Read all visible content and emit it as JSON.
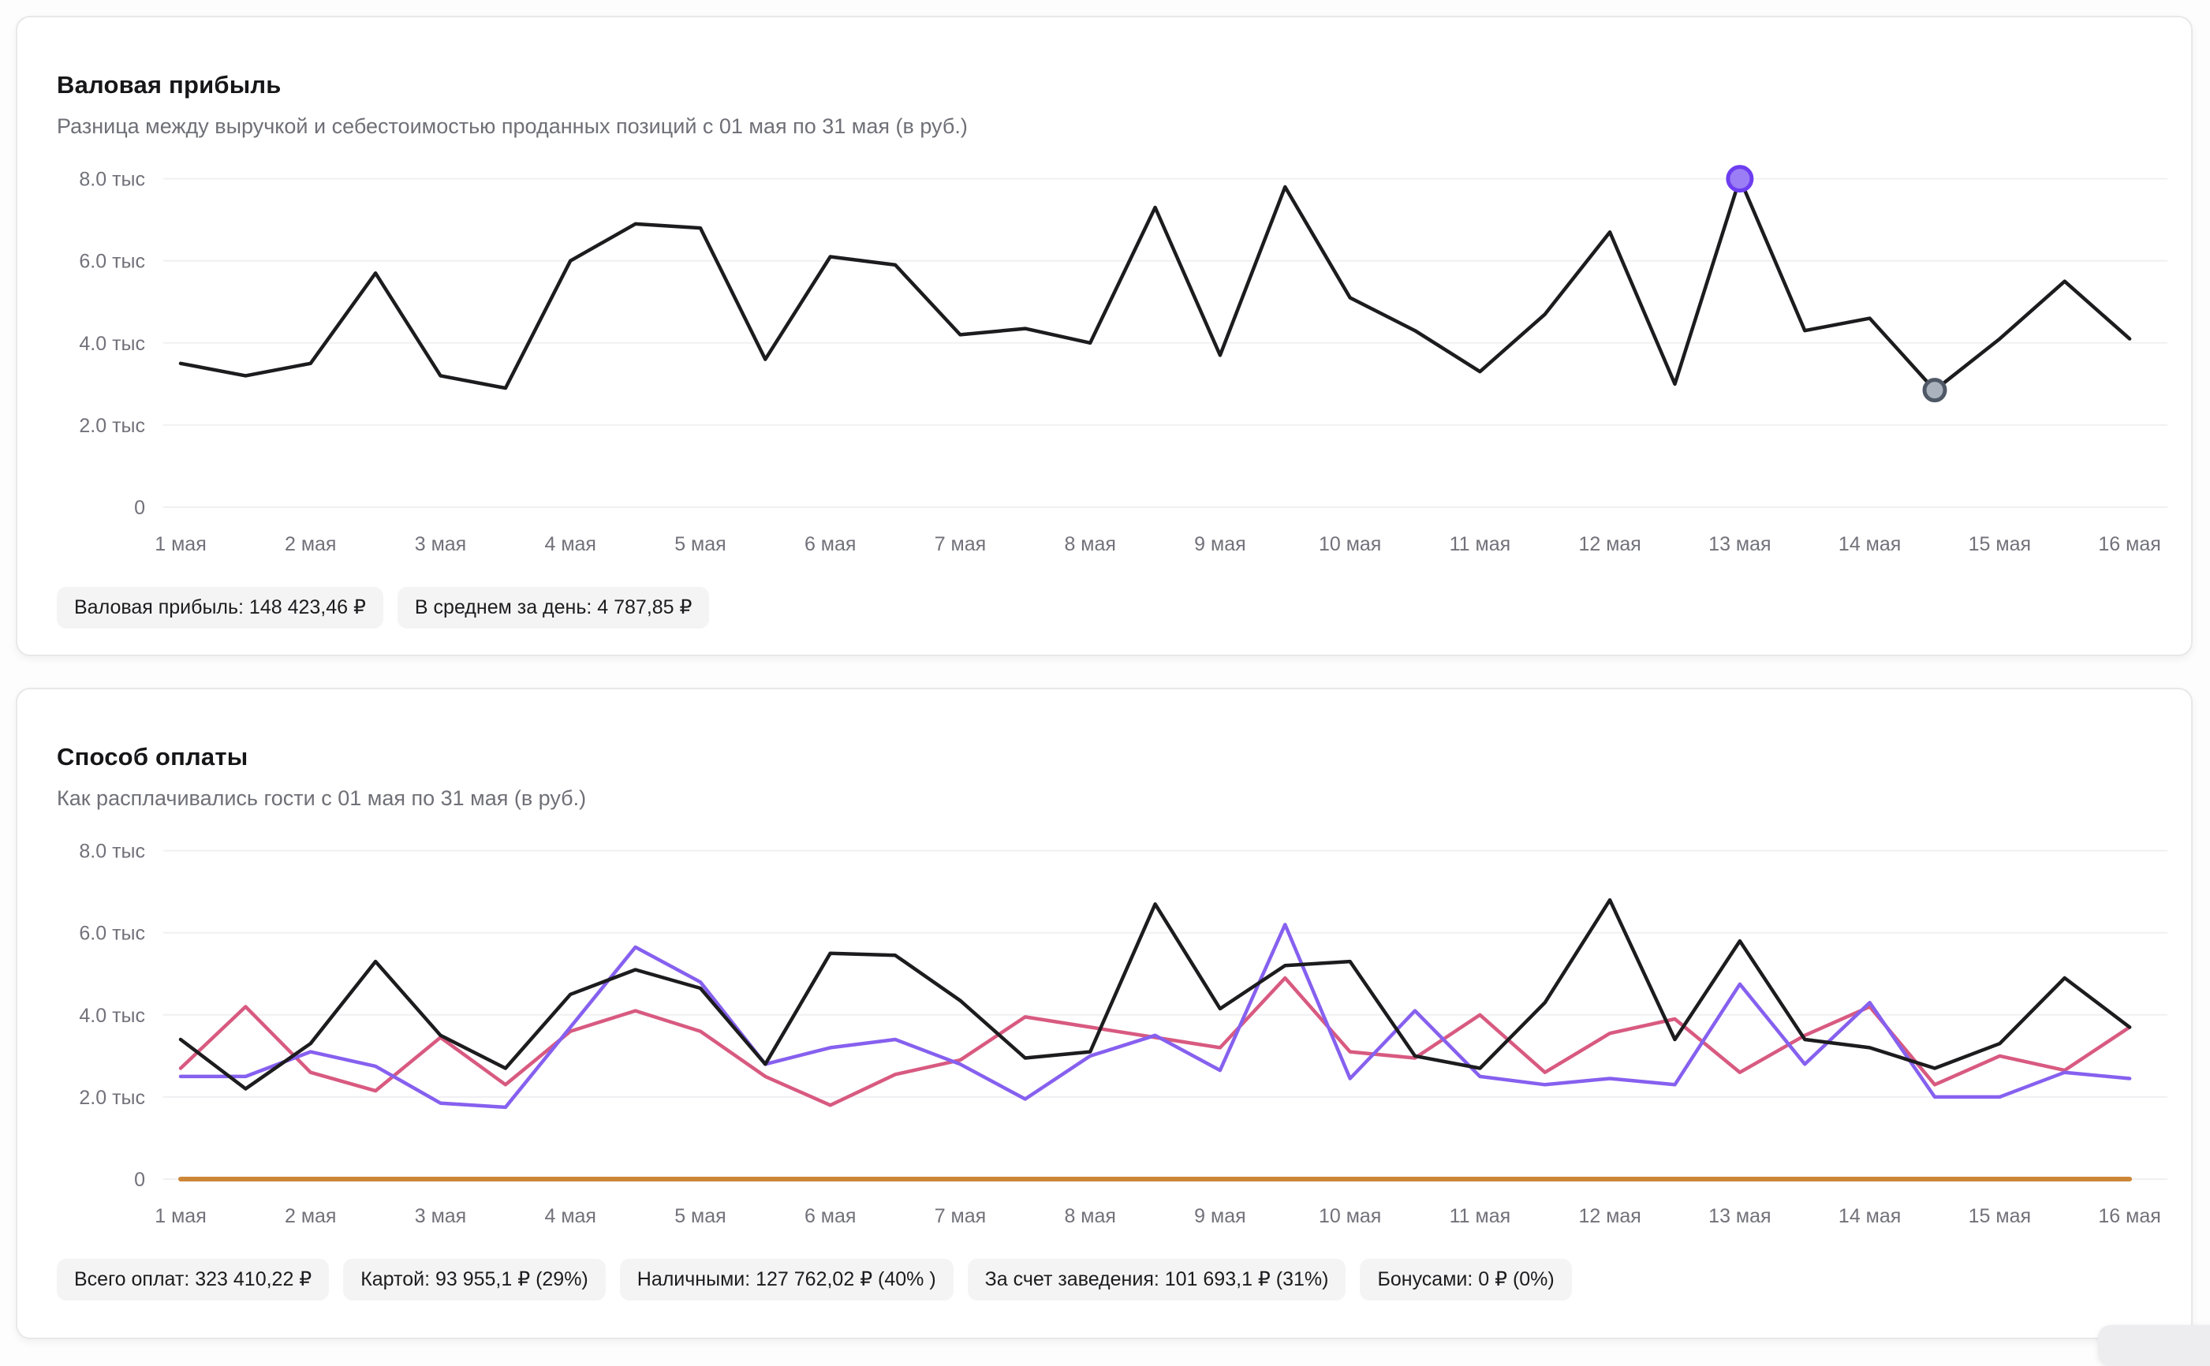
{
  "cards": [
    {
      "title": "Валовая прибыль",
      "subtitle": "Разница между выручкой и себестоимостью проданных позиций с 01 мая по 31 мая (в руб.)",
      "badges": [
        "Валовая прибыль: 148 423,46 ₽",
        "В среднем за день: 4 787,85 ₽"
      ]
    },
    {
      "title": "Способ оплаты",
      "subtitle": "Как расплачивались гости с 01 мая по 31 мая (в руб.)",
      "badges": [
        "Всего оплат: 323 410,22 ₽",
        "Картой: 93 955,1 ₽ (29%)",
        "Наличными: 127 762,02 ₽ (40% )",
        "За счет заведения: 101 693,1 ₽ (31%)",
        "Бонусами: 0 ₽ (0%)"
      ]
    }
  ],
  "chart_data": [
    {
      "type": "line",
      "title": "Валовая прибыль",
      "values_unit": "тыс ₽",
      "ylim": [
        0,
        8000
      ],
      "grid": true,
      "y_ticks": [
        "0",
        "2.0 тыс",
        "4.0 тыс",
        "6.0 тыс",
        "8.0 тыс"
      ],
      "x_labels": [
        "1 мая",
        "2 мая",
        "3 мая",
        "4 мая",
        "5 мая",
        "6 мая",
        "7 мая",
        "8 мая",
        "9 мая",
        "10 мая",
        "11 мая",
        "12 мая",
        "13 мая",
        "14 мая",
        "15 мая",
        "16 мая"
      ],
      "points_per_label": 2,
      "series": [
        {
          "name": "Валовая прибыль",
          "color": "#1c1c1e",
          "width": 4.5,
          "values": [
            3.5,
            3.2,
            3.5,
            5.7,
            3.2,
            2.9,
            6.0,
            6.9,
            6.8,
            3.6,
            6.1,
            5.9,
            4.2,
            4.35,
            4.0,
            7.3,
            3.7,
            7.8,
            5.1,
            4.3,
            3.3,
            4.7,
            6.7,
            3.0,
            8.0,
            4.3,
            4.6,
            2.85,
            4.1,
            5.5,
            4.1
          ]
        }
      ],
      "markers": [
        {
          "series": 0,
          "point_index": 24,
          "fill": "#9b7ef5",
          "stroke": "#6d3df0",
          "r": 15
        },
        {
          "series": 0,
          "point_index": 27,
          "fill": "#a9b2bd",
          "stroke": "#4f5866",
          "r": 13
        }
      ]
    },
    {
      "type": "line",
      "title": "Способ оплаты",
      "values_unit": "тыс ₽",
      "ylim": [
        0,
        8000
      ],
      "grid": true,
      "y_ticks": [
        "0",
        "2.0 тыс",
        "4.0 тыс",
        "6.0 тыс",
        "8.0 тыс"
      ],
      "x_labels": [
        "1 мая",
        "2 мая",
        "3 мая",
        "4 мая",
        "5 мая",
        "6 мая",
        "7 мая",
        "8 мая",
        "9 мая",
        "10 мая",
        "11 мая",
        "12 мая",
        "13 мая",
        "14 мая",
        "15 мая",
        "16 мая"
      ],
      "points_per_label": 2,
      "series": [
        {
          "name": "line-orange-zero",
          "color": "#cd8638",
          "width": 6,
          "values": [
            0,
            0,
            0,
            0,
            0,
            0,
            0,
            0,
            0,
            0,
            0,
            0,
            0,
            0,
            0,
            0,
            0,
            0,
            0,
            0,
            0,
            0,
            0,
            0,
            0,
            0,
            0,
            0,
            0,
            0,
            0
          ]
        },
        {
          "name": "line-pink",
          "color": "#d85a80",
          "width": 4.5,
          "values": [
            2.7,
            4.2,
            2.6,
            2.15,
            3.45,
            2.3,
            3.6,
            4.1,
            3.6,
            2.5,
            1.8,
            2.55,
            2.9,
            3.95,
            3.7,
            3.45,
            3.2,
            4.9,
            3.1,
            2.95,
            4.0,
            2.6,
            3.55,
            3.9,
            2.6,
            3.5,
            4.2,
            2.3,
            3.0,
            2.65,
            3.7
          ]
        },
        {
          "name": "line-purple",
          "color": "#8660ef",
          "width": 4.5,
          "values": [
            2.5,
            2.5,
            3.1,
            2.75,
            1.85,
            1.75,
            3.7,
            5.65,
            4.8,
            2.8,
            3.2,
            3.4,
            2.8,
            1.95,
            3.0,
            3.5,
            2.65,
            6.2,
            2.45,
            4.1,
            2.5,
            2.3,
            2.45,
            2.3,
            4.75,
            2.8,
            4.3,
            2.0,
            2.0,
            2.6,
            2.45
          ]
        },
        {
          "name": "line-black",
          "color": "#1c1c1e",
          "width": 4.5,
          "values": [
            3.4,
            2.2,
            3.3,
            5.3,
            3.5,
            2.7,
            4.5,
            5.1,
            4.65,
            2.8,
            5.5,
            5.45,
            4.35,
            2.95,
            3.1,
            6.7,
            4.15,
            5.2,
            5.3,
            3.0,
            2.7,
            4.3,
            6.8,
            3.4,
            5.8,
            3.4,
            3.2,
            2.7,
            3.3,
            4.9,
            3.7
          ]
        }
      ],
      "markers": []
    }
  ]
}
